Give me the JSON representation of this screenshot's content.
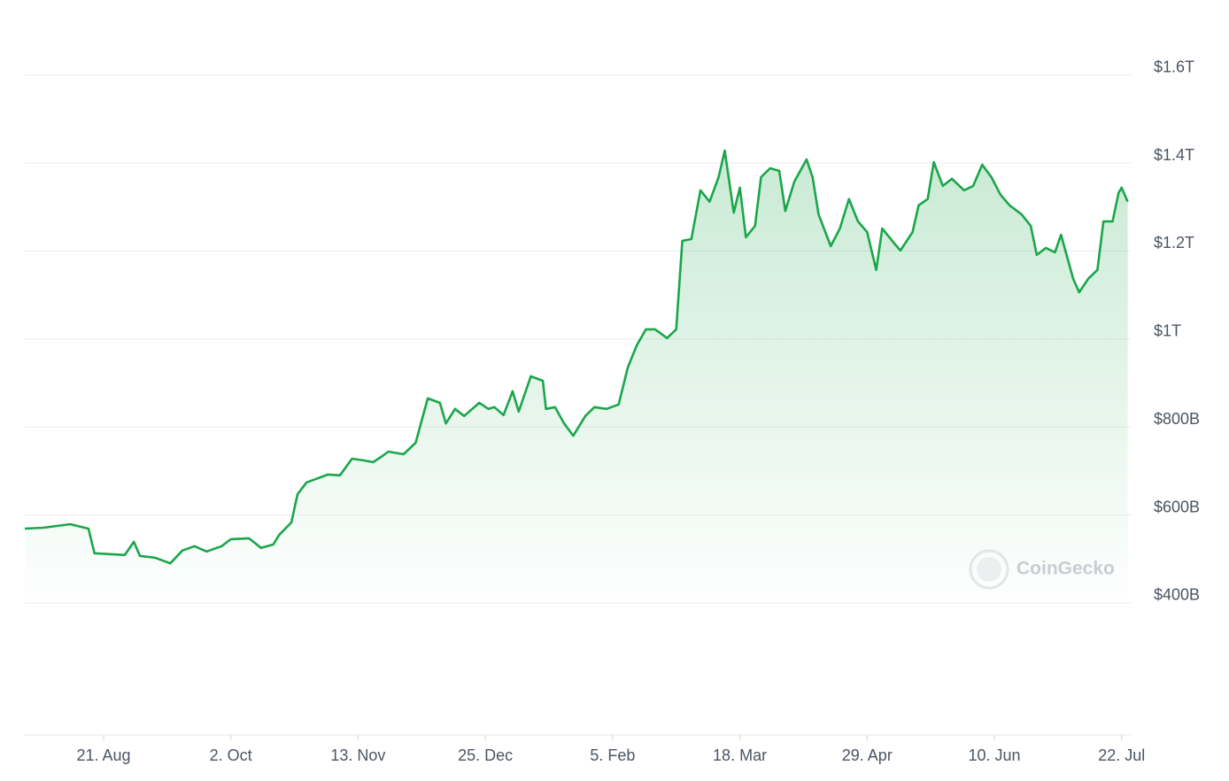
{
  "chart_data": {
    "type": "area",
    "watermark": "CoinGecko",
    "color": "#1aa64a",
    "grid": true,
    "xlim": [
      0,
      365
    ],
    "xticks": [
      {
        "value": 26,
        "label": "21. Aug"
      },
      {
        "value": 68,
        "label": "2. Oct"
      },
      {
        "value": 110,
        "label": "13. Nov"
      },
      {
        "value": 152,
        "label": "25. Dec"
      },
      {
        "value": 194,
        "label": "5. Feb"
      },
      {
        "value": 236,
        "label": "18. Mar"
      },
      {
        "value": 278,
        "label": "29. Apr"
      },
      {
        "value": 320,
        "label": "10. Jun"
      },
      {
        "value": 362,
        "label": "22. Jul"
      }
    ],
    "ylim": [
      100000000000.0,
      1700000000000.0
    ],
    "yticks": [
      {
        "value": 400000000000.0,
        "label": "$400B"
      },
      {
        "value": 600000000000.0,
        "label": "$600B"
      },
      {
        "value": 800000000000.0,
        "label": "$800B"
      },
      {
        "value": 1000000000000.0,
        "label": "$1T"
      },
      {
        "value": 1200000000000.0,
        "label": "$1.2T"
      },
      {
        "value": 1400000000000.0,
        "label": "$1.4T"
      },
      {
        "value": 1600000000000.0,
        "label": "$1.6T"
      }
    ],
    "x": [
      0,
      6,
      15,
      21,
      23,
      28,
      33,
      36,
      38,
      43,
      48,
      52,
      56,
      60,
      65,
      68,
      74,
      78,
      82,
      84,
      88,
      90,
      93,
      97,
      100,
      104,
      108,
      112,
      115,
      118,
      120,
      125,
      129,
      133,
      137,
      139,
      142,
      145,
      150,
      153,
      155,
      158,
      161,
      163,
      167,
      171,
      172,
      175,
      178,
      181,
      185,
      188,
      192,
      196,
      199,
      202,
      205,
      208,
      212,
      215,
      217,
      220,
      223,
      226,
      229,
      231,
      234,
      236,
      238,
      241,
      243,
      246,
      249,
      251,
      254,
      258,
      260,
      262,
      266,
      269,
      272,
      275,
      278,
      281,
      283,
      287,
      289,
      293,
      295,
      298,
      300,
      303,
      306,
      310,
      313,
      316,
      319,
      322,
      325,
      329,
      332,
      334,
      337,
      340,
      342,
      344,
      346,
      348,
      351,
      354,
      356,
      359,
      361,
      362,
      364
    ],
    "values": [
      569000000000.0,
      571000000000.0,
      579000000000.0,
      569000000000.0,
      513000000000.0,
      511000000000.0,
      509000000000.0,
      539000000000.0,
      507000000000.0,
      503000000000.0,
      490000000000.0,
      519000000000.0,
      529000000000.0,
      517000000000.0,
      529000000000.0,
      545000000000.0,
      547000000000.0,
      525000000000.0,
      533000000000.0,
      555000000000.0,
      583000000000.0,
      647000000000.0,
      674000000000.0,
      684000000000.0,
      692000000000.0,
      690000000000.0,
      728000000000.0,
      724000000000.0,
      720000000000.0,
      734000000000.0,
      744000000000.0,
      738000000000.0,
      764000000000.0,
      865000000000.0,
      855000000000.0,
      808000000000.0,
      841000000000.0,
      825000000000.0,
      855000000000.0,
      841000000000.0,
      845000000000.0,
      827000000000.0,
      881000000000.0,
      835000000000.0,
      915000000000.0,
      905000000000.0,
      841000000000.0,
      845000000000.0,
      808000000000.0,
      780000000000.0,
      825000000000.0,
      845000000000.0,
      841000000000.0,
      851000000000.0,
      935000000000.0,
      986000000000.0,
      1022000000000.0,
      1022000000000.0,
      1002000000000.0,
      1022000000000.0,
      1223000000000.0,
      1227000000000.0,
      1338000000000.0,
      1312000000000.0,
      1368000000000.0,
      1428000000000.0,
      1287000000000.0,
      1344000000000.0,
      1231000000000.0,
      1257000000000.0,
      1368000000000.0,
      1388000000000.0,
      1382000000000.0,
      1291000000000.0,
      1358000000000.0,
      1408000000000.0,
      1368000000000.0,
      1283000000000.0,
      1211000000000.0,
      1251000000000.0,
      1318000000000.0,
      1267000000000.0,
      1243000000000.0,
      1157000000000.0,
      1251000000000.0,
      1217000000000.0,
      1201000000000.0,
      1243000000000.0,
      1304000000000.0,
      1318000000000.0,
      1402000000000.0,
      1348000000000.0,
      1364000000000.0,
      1338000000000.0,
      1348000000000.0,
      1396000000000.0,
      1368000000000.0,
      1328000000000.0,
      1304000000000.0,
      1283000000000.0,
      1257000000000.0,
      1191000000000.0,
      1207000000000.0,
      1197000000000.0,
      1237000000000.0,
      1187000000000.0,
      1137000000000.0,
      1106000000000.0,
      1137000000000.0,
      1157000000000.0,
      1267000000000.0,
      1267000000000.0,
      1332000000000.0,
      1344000000000.0,
      1312000000000.0
    ]
  }
}
